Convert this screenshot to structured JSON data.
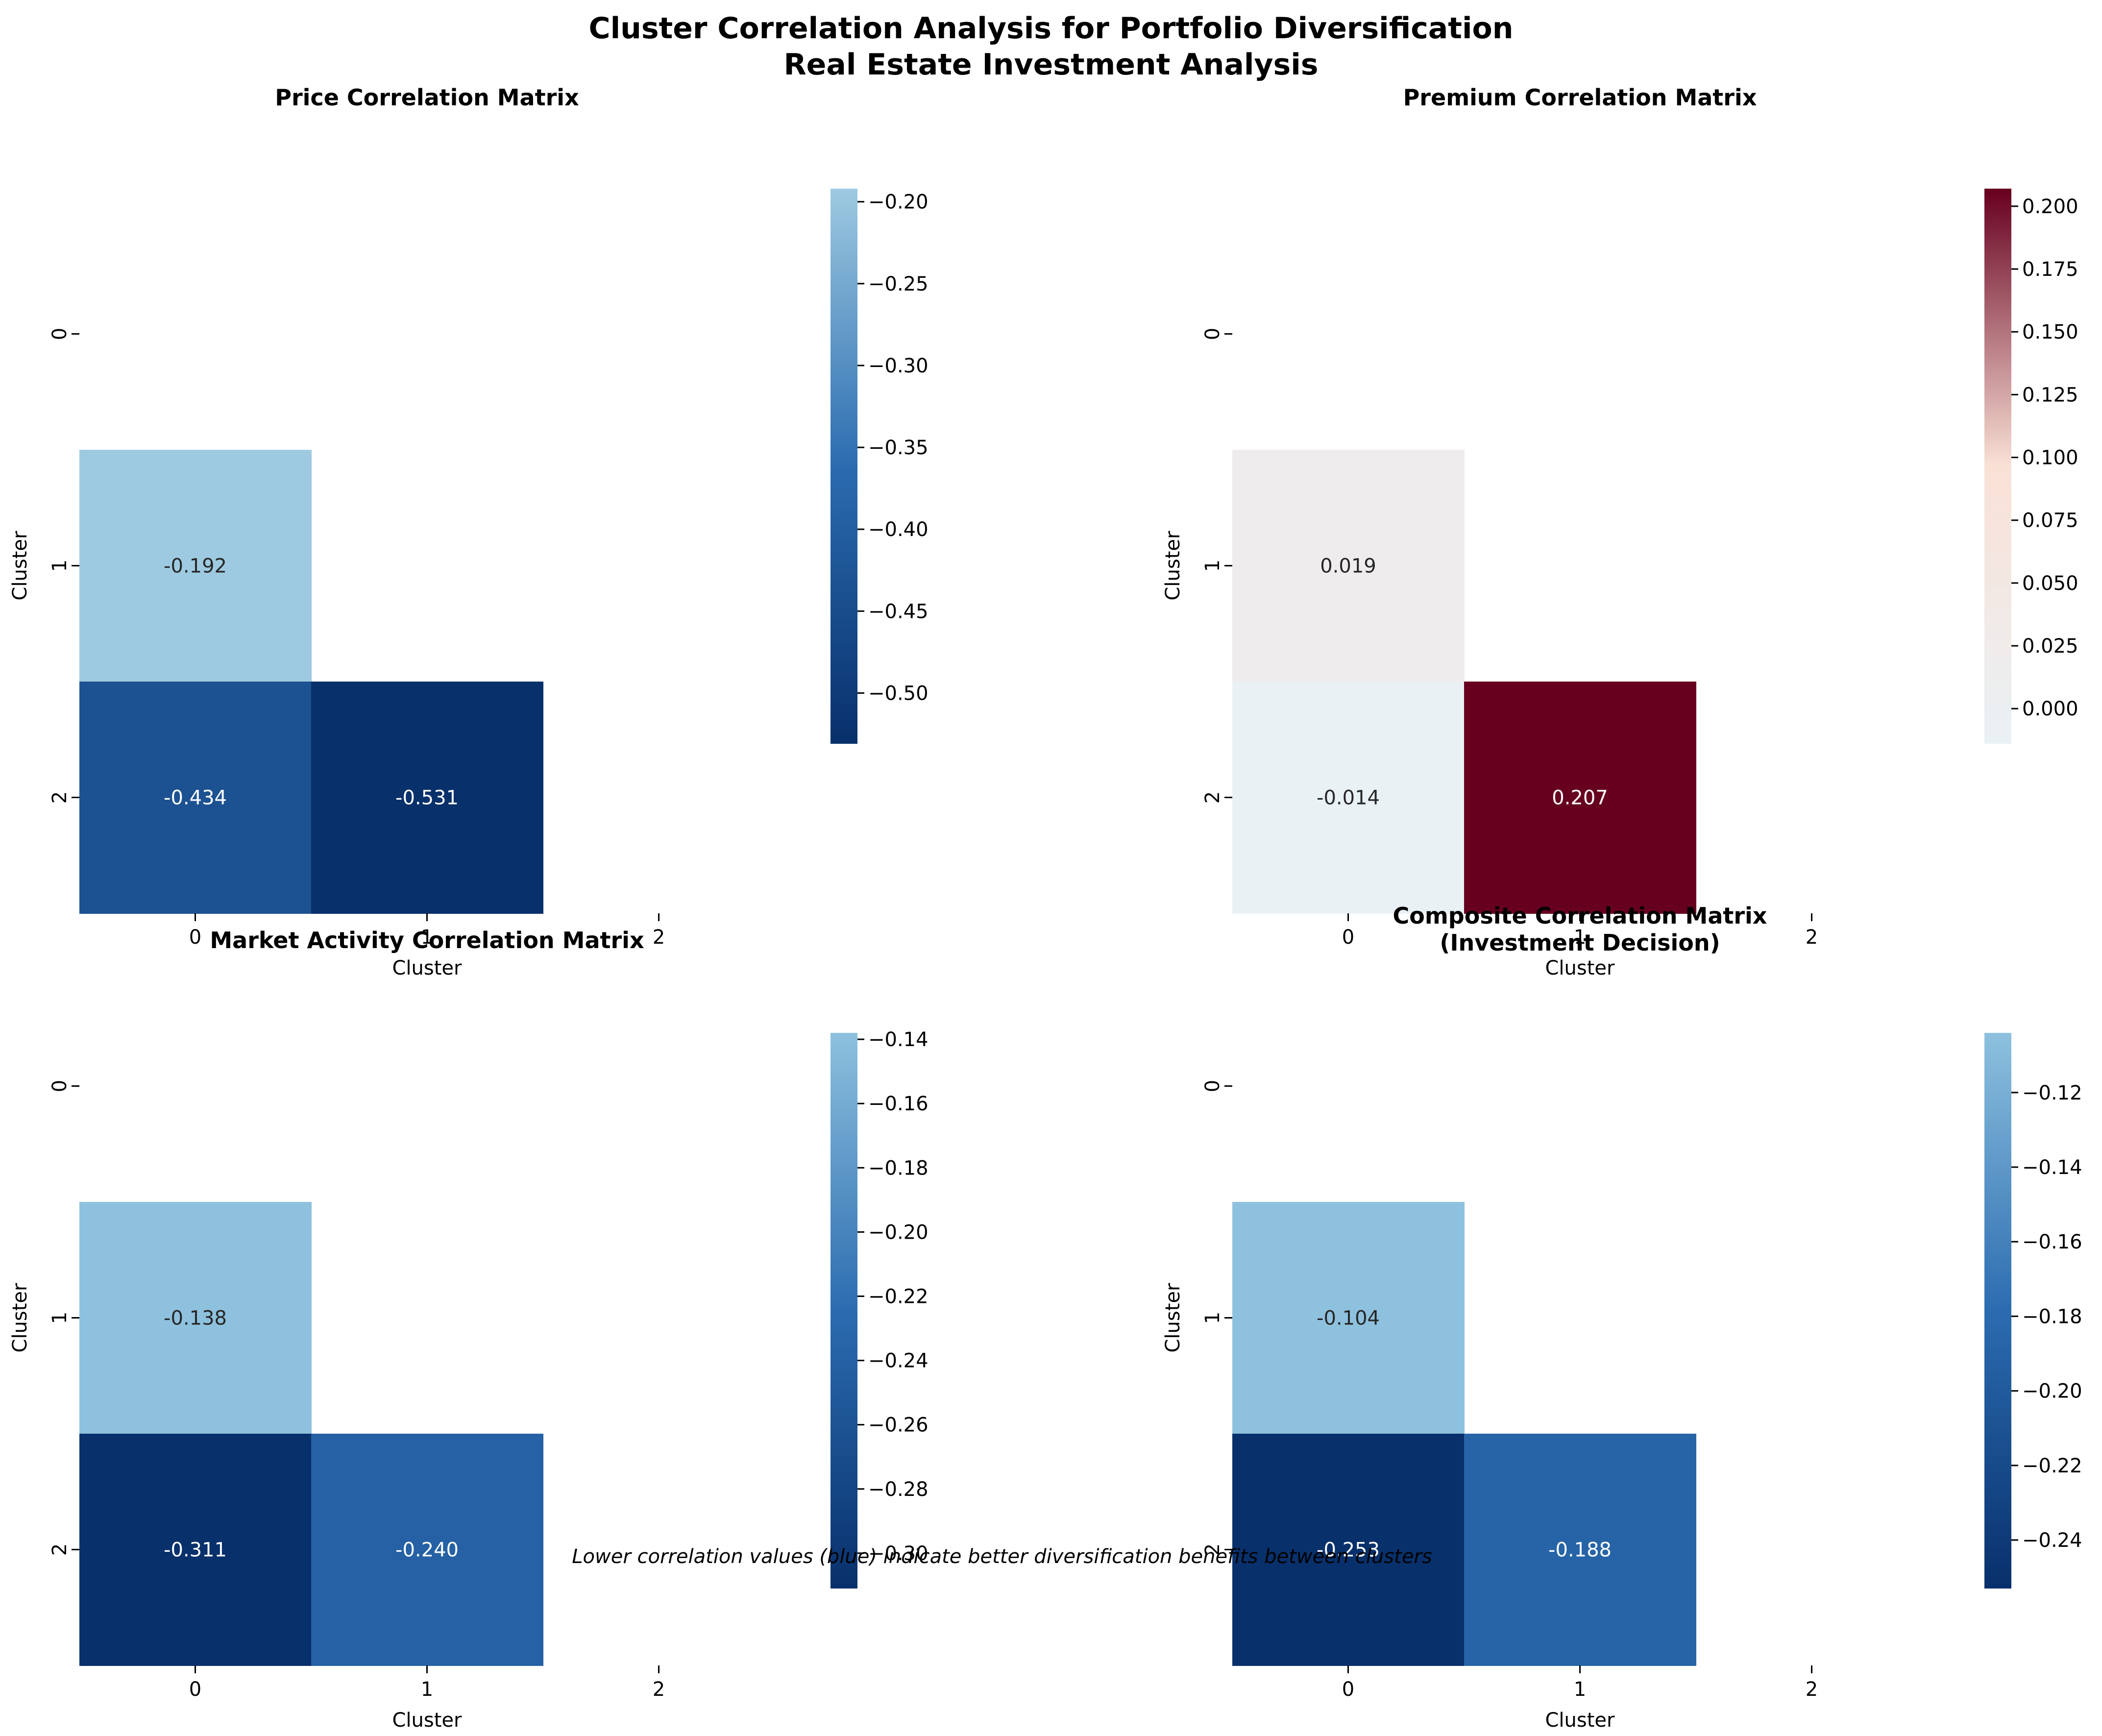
{
  "figure": {
    "title_line1": "Cluster Correlation Analysis for Portfolio Diversification",
    "title_line2": "Real Estate Investment Analysis",
    "footnote": "Lower correlation values (blue) indicate better diversification benefits between clusters"
  },
  "chart_data": [
    {
      "type": "heatmap",
      "title": "Price Correlation Matrix",
      "title_line2": "",
      "xlabel": "Cluster",
      "ylabel": "Cluster",
      "x_ticks": [
        "0",
        "1",
        "2"
      ],
      "y_ticks": [
        "0",
        "1",
        "2"
      ],
      "cells": [
        {
          "row": 1,
          "col": 0,
          "value": -0.192,
          "label": "-0.192"
        },
        {
          "row": 2,
          "col": 0,
          "value": -0.434,
          "label": "-0.434"
        },
        {
          "row": 2,
          "col": 1,
          "value": -0.531,
          "label": "-0.531"
        }
      ],
      "color_range": [
        -0.531,
        -0.192
      ],
      "colorbar_ticks": [
        {
          "value": -0.2,
          "label": "−0.20"
        },
        {
          "value": -0.25,
          "label": "−0.25"
        },
        {
          "value": -0.3,
          "label": "−0.30"
        },
        {
          "value": -0.35,
          "label": "−0.35"
        },
        {
          "value": -0.4,
          "label": "−0.40"
        },
        {
          "value": -0.45,
          "label": "−0.45"
        },
        {
          "value": -0.5,
          "label": "−0.50"
        }
      ],
      "colors": {
        "min": "#08306b",
        "mid": "#2b6cb0",
        "max": "#9ecae1"
      }
    },
    {
      "type": "heatmap",
      "title": "Premium Correlation Matrix",
      "title_line2": "",
      "xlabel": "Cluster",
      "ylabel": "Cluster",
      "x_ticks": [
        "0",
        "1",
        "2"
      ],
      "y_ticks": [
        "0",
        "1",
        "2"
      ],
      "cells": [
        {
          "row": 1,
          "col": 0,
          "value": 0.019,
          "label": "0.019"
        },
        {
          "row": 2,
          "col": 0,
          "value": -0.014,
          "label": "-0.014"
        },
        {
          "row": 2,
          "col": 1,
          "value": 0.207,
          "label": "0.207"
        }
      ],
      "color_range": [
        -0.014,
        0.207
      ],
      "colorbar_ticks": [
        {
          "value": 0.0,
          "label": "0.000"
        },
        {
          "value": 0.025,
          "label": "0.025"
        },
        {
          "value": 0.05,
          "label": "0.050"
        },
        {
          "value": 0.075,
          "label": "0.075"
        },
        {
          "value": 0.1,
          "label": "0.100"
        },
        {
          "value": 0.125,
          "label": "0.125"
        },
        {
          "value": 0.15,
          "label": "0.150"
        },
        {
          "value": 0.175,
          "label": "0.175"
        },
        {
          "value": 0.2,
          "label": "0.200"
        }
      ],
      "colors": {
        "min": "#eaf1f5",
        "mid": "#f9e1d6",
        "max": "#67001f"
      }
    },
    {
      "type": "heatmap",
      "title": "Market Activity Correlation Matrix",
      "title_line2": "",
      "xlabel": "Cluster",
      "ylabel": "Cluster",
      "x_ticks": [
        "0",
        "1",
        "2"
      ],
      "y_ticks": [
        "0",
        "1",
        "2"
      ],
      "cells": [
        {
          "row": 1,
          "col": 0,
          "value": -0.138,
          "label": "-0.138"
        },
        {
          "row": 2,
          "col": 0,
          "value": -0.311,
          "label": "-0.311"
        },
        {
          "row": 2,
          "col": 1,
          "value": -0.24,
          "label": "-0.240"
        }
      ],
      "color_range": [
        -0.311,
        -0.138
      ],
      "colorbar_ticks": [
        {
          "value": -0.14,
          "label": "−0.14"
        },
        {
          "value": -0.16,
          "label": "−0.16"
        },
        {
          "value": -0.18,
          "label": "−0.18"
        },
        {
          "value": -0.2,
          "label": "−0.20"
        },
        {
          "value": -0.22,
          "label": "−0.22"
        },
        {
          "value": -0.24,
          "label": "−0.24"
        },
        {
          "value": -0.26,
          "label": "−0.26"
        },
        {
          "value": -0.28,
          "label": "−0.28"
        },
        {
          "value": -0.3,
          "label": "−0.30"
        }
      ],
      "colors": {
        "min": "#08306b",
        "mid": "#2b6cb0",
        "max": "#8ec1de"
      }
    },
    {
      "type": "heatmap",
      "title": "Composite Correlation Matrix",
      "title_line2": "(Investment Decision)",
      "xlabel": "Cluster",
      "ylabel": "Cluster",
      "x_ticks": [
        "0",
        "1",
        "2"
      ],
      "y_ticks": [
        "0",
        "1",
        "2"
      ],
      "cells": [
        {
          "row": 1,
          "col": 0,
          "value": -0.104,
          "label": "-0.104"
        },
        {
          "row": 2,
          "col": 0,
          "value": -0.253,
          "label": "-0.253"
        },
        {
          "row": 2,
          "col": 1,
          "value": -0.188,
          "label": "-0.188"
        }
      ],
      "color_range": [
        -0.253,
        -0.104
      ],
      "colorbar_ticks": [
        {
          "value": -0.12,
          "label": "−0.12"
        },
        {
          "value": -0.14,
          "label": "−0.14"
        },
        {
          "value": -0.16,
          "label": "−0.16"
        },
        {
          "value": -0.18,
          "label": "−0.18"
        },
        {
          "value": -0.2,
          "label": "−0.20"
        },
        {
          "value": -0.22,
          "label": "−0.22"
        },
        {
          "value": -0.24,
          "label": "−0.24"
        }
      ],
      "colors": {
        "min": "#08306b",
        "mid": "#2b6cb0",
        "max": "#8ec1de"
      }
    }
  ]
}
